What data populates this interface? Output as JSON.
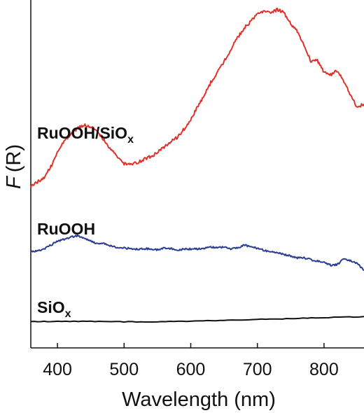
{
  "chart_data": {
    "type": "line",
    "xlabel": "Wavelength (nm)",
    "ylabel_italic": "F",
    "ylabel_paren": "(R)",
    "xlim": [
      360,
      860
    ],
    "ylim": [
      0,
      1
    ],
    "xticks": [
      400,
      500,
      600,
      700,
      800
    ],
    "yticks_visible": false,
    "grid": false,
    "legend": "none (series labeled directly on plot)",
    "series": [
      {
        "name": "RuOOH/SiO",
        "name_subscript": "x",
        "color": "#e0322a",
        "x": [
          360,
          370,
          380,
          390,
          400,
          410,
          420,
          430,
          440,
          450,
          460,
          470,
          480,
          490,
          500,
          510,
          520,
          530,
          540,
          550,
          560,
          570,
          580,
          590,
          600,
          610,
          620,
          630,
          640,
          650,
          660,
          670,
          680,
          690,
          700,
          710,
          720,
          730,
          740,
          750,
          760,
          770,
          780,
          790,
          800,
          810,
          820,
          830,
          840,
          850,
          860
        ],
        "values": [
          0.469,
          0.483,
          0.497,
          0.527,
          0.568,
          0.602,
          0.622,
          0.638,
          0.648,
          0.645,
          0.63,
          0.605,
          0.577,
          0.555,
          0.537,
          0.535,
          0.54,
          0.549,
          0.557,
          0.568,
          0.584,
          0.6,
          0.613,
          0.637,
          0.664,
          0.7,
          0.734,
          0.772,
          0.802,
          0.833,
          0.867,
          0.902,
          0.93,
          0.95,
          0.972,
          0.982,
          0.976,
          0.984,
          0.975,
          0.944,
          0.922,
          0.88,
          0.835,
          0.835,
          0.802,
          0.795,
          0.808,
          0.775,
          0.732,
          0.7,
          0.71
        ]
      },
      {
        "name": "RuOOH",
        "color": "#2c3d94",
        "x": [
          360,
          370,
          380,
          390,
          400,
          410,
          420,
          430,
          440,
          450,
          460,
          470,
          480,
          490,
          500,
          510,
          520,
          530,
          540,
          550,
          560,
          570,
          580,
          590,
          600,
          610,
          620,
          630,
          640,
          650,
          660,
          670,
          680,
          690,
          700,
          710,
          720,
          730,
          740,
          750,
          760,
          770,
          780,
          790,
          800,
          810,
          820,
          830,
          840,
          850,
          860
        ],
        "values": [
          0.281,
          0.282,
          0.288,
          0.299,
          0.31,
          0.316,
          0.323,
          0.326,
          0.319,
          0.311,
          0.303,
          0.303,
          0.296,
          0.292,
          0.291,
          0.289,
          0.287,
          0.289,
          0.287,
          0.286,
          0.291,
          0.289,
          0.285,
          0.287,
          0.288,
          0.288,
          0.29,
          0.294,
          0.291,
          0.294,
          0.288,
          0.291,
          0.299,
          0.295,
          0.289,
          0.284,
          0.28,
          0.278,
          0.271,
          0.268,
          0.262,
          0.262,
          0.257,
          0.252,
          0.25,
          0.241,
          0.242,
          0.26,
          0.254,
          0.245,
          0.225
        ]
      },
      {
        "name": "SiO",
        "name_subscript": "x",
        "color": "#111111",
        "x": [
          360,
          400,
          450,
          500,
          550,
          600,
          650,
          700,
          750,
          800,
          860
        ],
        "values": [
          0.077,
          0.077,
          0.077,
          0.076,
          0.076,
          0.078,
          0.08,
          0.083,
          0.085,
          0.088,
          0.091
        ]
      }
    ]
  }
}
